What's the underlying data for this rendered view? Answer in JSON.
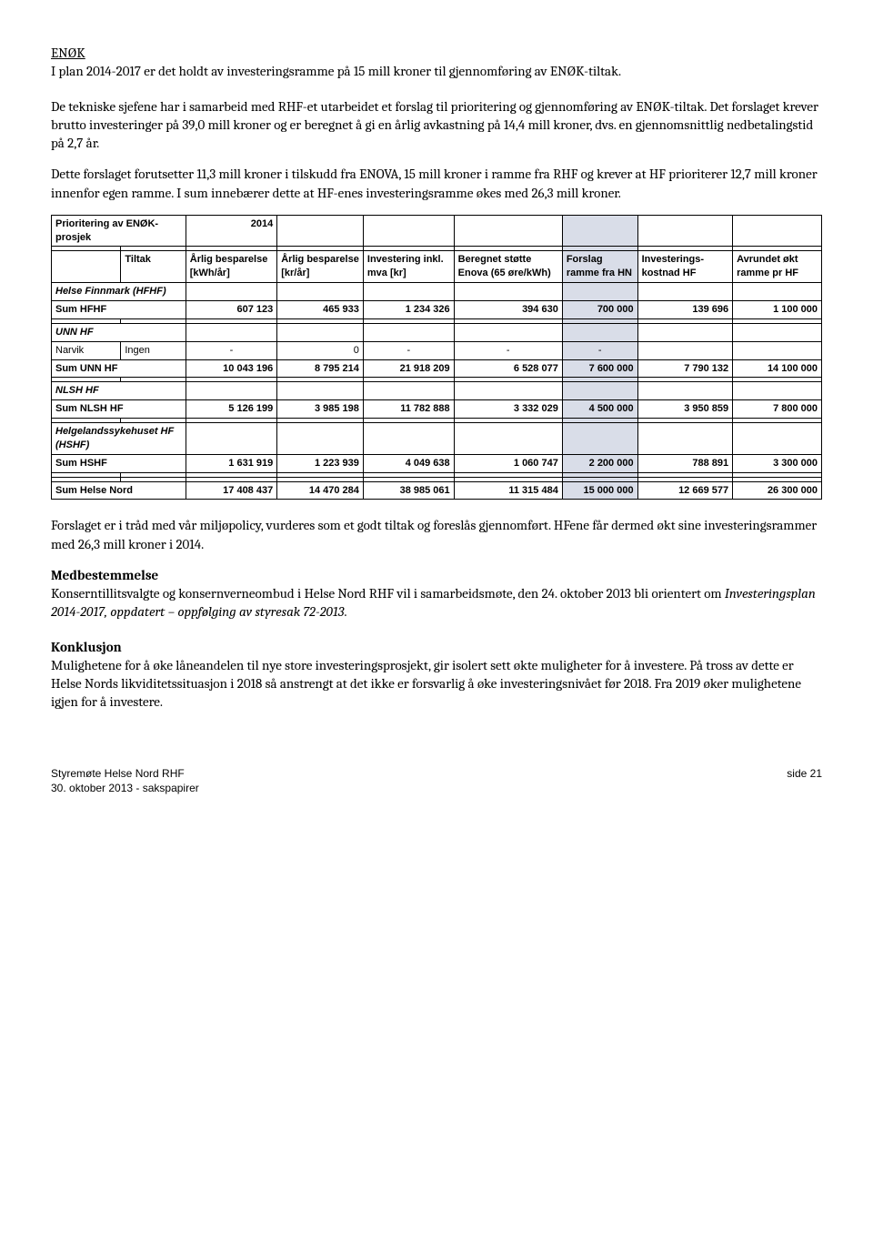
{
  "heading1": "ENØK",
  "para1a": "I plan 2014-2017 er det holdt av investeringsramme på 15 mill kroner til gjennomføring av ENØK-tiltak.",
  "para2": "De tekniske sjefene har i samarbeid med RHF-et utarbeidet et forslag til prioritering og gjennomføring av ENØK-tiltak. Det forslaget krever brutto investeringer på 39,0 mill kroner og er beregnet å gi en årlig avkastning på 14,4 mill kroner, dvs. en gjennomsnittlig nedbetalingstid på 2,7 år.",
  "para3": "Dette forslaget forutsetter 11,3 mill kroner i tilskudd fra ENOVA, 15 mill kroner i ramme fra RHF og krever at HF prioriterer 12,7 mill kroner innenfor egen ramme. I sum innebærer dette at HF-enes investeringsramme økes med 26,3 mill kroner.",
  "table_title": "Prioritering av ENØK-prosjek",
  "table_year": "2014",
  "col_tiltak": "Tiltak",
  "col_h1a": "Årlig besparelse [kWh/år]",
  "col_h2a": "Årlig besparelse [kr/år]",
  "col_h3a": "Investering inkl. mva [kr]",
  "col_h4a": "Beregnet støtte Enova (65 øre/kWh)",
  "col_h5a": "Forslag ramme fra HN",
  "col_h6a": "Investerings-kostnad HF",
  "col_h7a": "Avrundet økt ramme pr HF",
  "sec_hfhf": "Helse Finnmark (HFHF)",
  "row_hfhf_label": "Sum HFHF",
  "row_hfhf": [
    "607 123",
    "465 933",
    "1 234 326",
    "394 630",
    "700 000",
    "139 696",
    "1 100 000"
  ],
  "sec_unn": "UNN HF",
  "row_narvik_label": "Narvik",
  "row_narvik_tiltak": "Ingen",
  "row_narvik": [
    "-",
    "0",
    "-",
    "-",
    "-",
    "",
    ""
  ],
  "row_unn_label": "Sum UNN HF",
  "row_unn": [
    "10 043 196",
    "8 795 214",
    "21 918 209",
    "6 528 077",
    "7 600 000",
    "7 790 132",
    "14 100 000"
  ],
  "sec_nlsh": "NLSH HF",
  "row_nlsh_label": "Sum NLSH HF",
  "row_nlsh": [
    "5 126 199",
    "3 985 198",
    "11 782 888",
    "3 332 029",
    "4 500 000",
    "3 950 859",
    "7 800 000"
  ],
  "sec_hshf": "Helgelandssykehuset HF (HSHF)",
  "row_hshf_label": "Sum HSHF",
  "row_hshf": [
    "1 631 919",
    "1 223 939",
    "4 049 638",
    "1 060 747",
    "2 200 000",
    "788 891",
    "3 300 000"
  ],
  "row_total_label": "Sum Helse Nord",
  "row_total": [
    "17 408 437",
    "14 470 284",
    "38 985 061",
    "11 315 484",
    "15 000 000",
    "12 669 577",
    "26 300 000"
  ],
  "para4": "Forslaget er i tråd med vår miljøpolicy, vurderes som et godt tiltak og foreslås gjennomført. HFene får dermed økt sine investeringsrammer med 26,3 mill kroner i 2014.",
  "heading2": "Medbestemmelse",
  "para5a": "Konserntillitsvalgte og konsernverneombud i Helse Nord RHF vil i samarbeidsmøte, den 24. oktober 2013 bli orientert om ",
  "para5b": "Investeringsplan 2014-2017, oppdatert – oppfølging av styresak 72-2013",
  "para5c": ".",
  "heading3": "Konklusjon",
  "para6": "Mulighetene for å øke låneandelen til nye store investeringsprosjekt, gir isolert sett økte muligheter for å investere. På tross av dette er Helse Nords likviditetssituasjon i 2018 så anstrengt at det ikke er forsvarlig å øke investeringsnivået før 2018. Fra 2019 øker mulighetene igjen for å investere.",
  "footer_left1": "Styremøte Helse Nord RHF",
  "footer_left2": "30. oktober 2013 - sakspapirer",
  "footer_right": "side 21"
}
